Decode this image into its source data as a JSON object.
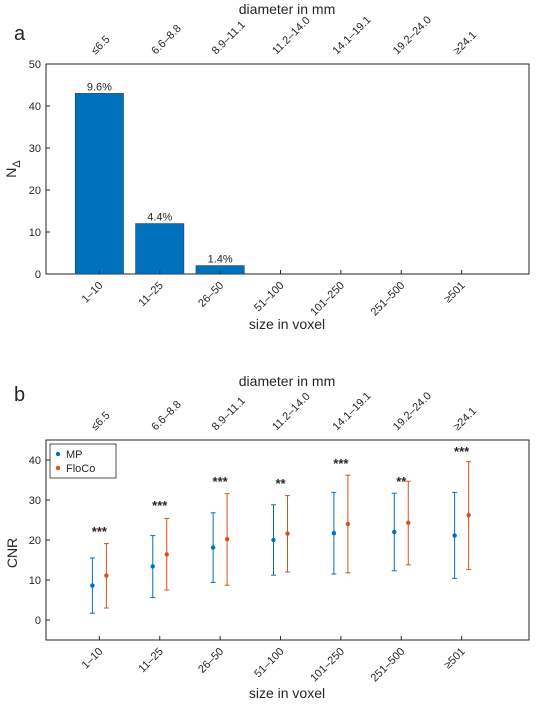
{
  "panels": [
    {
      "id": "a",
      "label": "a",
      "top_axis_label": "diameter in mm",
      "top_ticks": [
        "≤6.5",
        "6.6–8.8",
        "8.9–11.1",
        "11.2–14.0",
        "14.1–19.1",
        "19.2–24.0",
        "≥24.1"
      ]
    },
    {
      "id": "b",
      "label": "b",
      "top_axis_label": "diameter in mm",
      "top_ticks": [
        "≤6.5",
        "6.6–8.8",
        "8.9–11.1",
        "11.2–14.0",
        "14.1–19.1",
        "19.2–24.0",
        "≥24.1"
      ]
    }
  ],
  "chart_data": [
    {
      "type": "bar",
      "title": "",
      "xlabel": "size in voxel",
      "ylabel": "N",
      "ylabel_subscript": "Δ",
      "ylim": [
        0,
        50
      ],
      "yticks": [
        0,
        10,
        20,
        30,
        40,
        50
      ],
      "categories": [
        "1–10",
        "11–25",
        "26–50",
        "51–100",
        "101–250",
        "251–500",
        "≥501"
      ],
      "values": [
        43,
        12,
        2,
        0,
        0,
        0,
        0
      ],
      "data_labels": [
        "9.6%",
        "4.4%",
        "1.4%",
        "",
        "",
        "",
        ""
      ],
      "bar_color": "#0072BD",
      "grid": false
    },
    {
      "type": "scatter",
      "subtype": "errorbar",
      "title": "",
      "xlabel": "size in voxel",
      "ylabel": "CNR",
      "ylim": [
        -5,
        45
      ],
      "yticks": [
        0,
        10,
        20,
        30,
        40
      ],
      "categories": [
        "1–10",
        "11–25",
        "26–50",
        "51–100",
        "101–250",
        "251–500",
        "≥501"
      ],
      "legend_position": "top-left",
      "grid": false,
      "series": [
        {
          "name": "MP",
          "color": "#0072BD",
          "mean": [
            8.6,
            13.4,
            18.1,
            20.0,
            21.7,
            22.0,
            21.1
          ],
          "lower": [
            1.7,
            5.6,
            9.4,
            11.2,
            11.5,
            12.3,
            10.4
          ],
          "upper": [
            15.5,
            21.1,
            26.8,
            28.8,
            31.9,
            31.7,
            31.9
          ]
        },
        {
          "name": "FloCo",
          "color": "#D95319",
          "mean": [
            11.1,
            16.4,
            20.2,
            21.6,
            24.0,
            24.3,
            26.2
          ],
          "lower": [
            3.0,
            7.5,
            8.7,
            12.0,
            11.8,
            13.8,
            12.6
          ],
          "upper": [
            19.1,
            25.4,
            31.6,
            31.1,
            36.2,
            34.7,
            39.6
          ]
        }
      ],
      "significance": [
        "***",
        "***",
        "***",
        "**",
        "***",
        "**",
        "***"
      ],
      "significance_y": [
        21,
        27.5,
        33.5,
        33,
        38,
        33.5,
        41
      ]
    }
  ]
}
